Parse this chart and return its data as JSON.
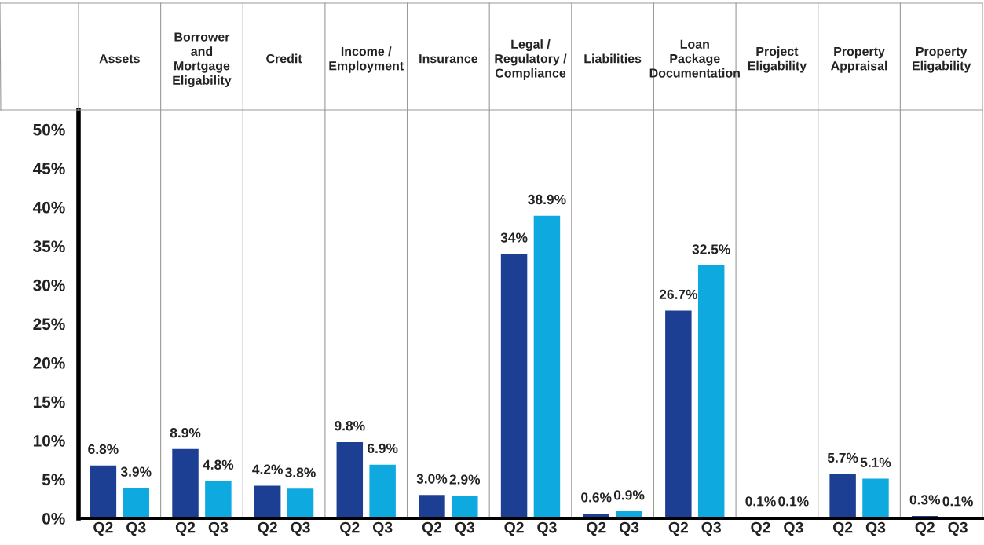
{
  "chart_data": {
    "type": "bar",
    "categories": [
      "Assets",
      "Borrower\nand\nMortgage\nEligability",
      "Credit",
      "Income /\nEmployment",
      "Insurance",
      "Legal /\nRegulatory /\nCompliance",
      "Liabilities",
      "Loan\nPackage\nDocumentation",
      "Project\nEligability",
      "Property\nAppraisal",
      "Property\nEligability"
    ],
    "series": [
      {
        "name": "Q2",
        "color": "#1c3f94",
        "values": [
          6.8,
          8.9,
          4.2,
          9.8,
          3.0,
          34,
          0.6,
          26.7,
          0.1,
          5.7,
          0.3
        ],
        "value_labels": [
          "6.8%",
          "8.9%",
          "4.2%",
          "9.8%",
          "3.0%",
          "34%",
          "0.6%",
          "26.7%",
          "0.1%",
          "5.7%",
          "0.3%"
        ]
      },
      {
        "name": "Q3",
        "color": "#0eaadf",
        "values": [
          3.9,
          4.8,
          3.8,
          6.9,
          2.9,
          38.9,
          0.9,
          32.5,
          0.1,
          5.1,
          0.1
        ],
        "value_labels": [
          "3.9%",
          "4.8%",
          "3.8%",
          "6.9%",
          "2.9%",
          "38.9%",
          "0.9%",
          "32.5%",
          "0.1%",
          "5.1%",
          "0.1%"
        ]
      }
    ],
    "ylim": [
      0,
      52.5
    ],
    "yticks": [
      {
        "value": 0,
        "label": "0%"
      },
      {
        "value": 5,
        "label": "5%"
      },
      {
        "value": 10,
        "label": "10%"
      },
      {
        "value": 15,
        "label": "15%"
      },
      {
        "value": 20,
        "label": "20%"
      },
      {
        "value": 25,
        "label": "25%"
      },
      {
        "value": 30,
        "label": "30%"
      },
      {
        "value": 35,
        "label": "35%"
      },
      {
        "value": 40,
        "label": "40%"
      },
      {
        "value": 45,
        "label": "45%"
      },
      {
        "value": 50,
        "label": "50%"
      }
    ],
    "grid": false,
    "legend": false
  }
}
